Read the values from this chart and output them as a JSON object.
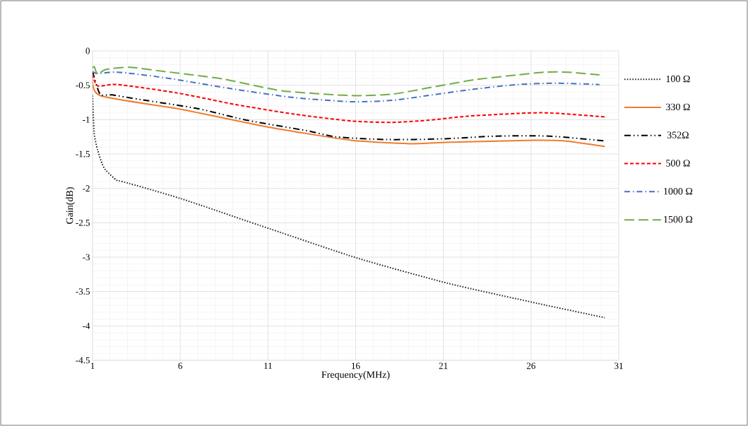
{
  "chart_data": {
    "type": "line",
    "xlabel": "Frequency(MHz)",
    "ylabel": "Gain(dB)",
    "xlim": [
      1,
      31
    ],
    "xticks": [
      1,
      6,
      11,
      16,
      21,
      26,
      31
    ],
    "ylim": [
      -4.5,
      0
    ],
    "yticks": [
      0,
      -0.5,
      -1,
      -1.5,
      -2,
      -2.5,
      -3,
      -3.5,
      -4,
      -4.5
    ],
    "grid": true,
    "legend": "right",
    "marker": "none",
    "series": [
      {
        "name": "100 Ω",
        "color": "#262626",
        "line_style": "dotted",
        "x": [
          1.0,
          1.09,
          1.29,
          1.56,
          1.77,
          2.37,
          2.84,
          6.05,
          11.13,
          16.18,
          21.26,
          26.33,
          30.2
        ],
        "values": [
          -0.65,
          -1.19,
          -1.44,
          -1.65,
          -1.74,
          -1.88,
          -1.91,
          -2.15,
          -2.59,
          -3.02,
          -3.38,
          -3.67,
          -3.88
        ]
      },
      {
        "name": "330 Ω",
        "color": "#ed7d31",
        "line_style": "solid",
        "x": [
          1.0,
          1.43,
          6.05,
          11.04,
          15.74,
          19.08,
          21.1,
          26.2,
          27.9,
          30.2
        ],
        "values": [
          -0.37,
          -0.65,
          -0.85,
          -1.11,
          -1.3,
          -1.35,
          -1.33,
          -1.3,
          -1.31,
          -1.39
        ]
      },
      {
        "name": "352Ω",
        "color": "#000000",
        "line_style": "dashdotdotted",
        "x": [
          1.0,
          1.43,
          2.1,
          3.78,
          7.0,
          9.82,
          13.2,
          14.86,
          17.8,
          20.9,
          24.0,
          27.06,
          30.2
        ],
        "values": [
          -0.3,
          -0.63,
          -0.64,
          -0.71,
          -0.84,
          -1.01,
          -1.16,
          -1.25,
          -1.29,
          -1.28,
          -1.24,
          -1.24,
          -1.31
        ]
      },
      {
        "name": "500 Ω",
        "color": "#ff0000",
        "line_style": "dashed",
        "x": [
          1.0,
          1.29,
          2.43,
          5.79,
          9.14,
          12.5,
          15.74,
          18.08,
          20.1,
          22.38,
          25.2,
          26.54,
          27.6,
          30.2
        ],
        "values": [
          -0.34,
          -0.51,
          -0.49,
          -0.61,
          -0.78,
          -0.92,
          -1.02,
          -1.04,
          -1.01,
          -0.95,
          -0.91,
          -0.9,
          -0.91,
          -0.96
        ]
      },
      {
        "name": "1000 Ω",
        "color": "#4472c4",
        "line_style": "dashdotted",
        "x": [
          1.0,
          1.3,
          2.43,
          5.1,
          9.15,
          12.5,
          15.8,
          18.08,
          20.1,
          22.65,
          25.2,
          27.5,
          29.9
        ],
        "values": [
          -0.3,
          -0.33,
          -0.31,
          -0.39,
          -0.56,
          -0.68,
          -0.74,
          -0.72,
          -0.65,
          -0.56,
          -0.49,
          -0.47,
          -0.49
        ]
      },
      {
        "name": "1500 Ω",
        "color": "#70ad47",
        "line_style": "longdashed",
        "x": [
          1.0,
          1.1,
          1.29,
          1.77,
          3.1,
          5.1,
          8.46,
          11.8,
          15.74,
          18.08,
          20.1,
          22.78,
          25.2,
          26.8,
          28.15,
          29.9
        ],
        "values": [
          -0.25,
          -0.23,
          -0.34,
          -0.27,
          -0.24,
          -0.3,
          -0.41,
          -0.58,
          -0.65,
          -0.63,
          -0.54,
          -0.42,
          -0.35,
          -0.31,
          -0.31,
          -0.35
        ]
      }
    ]
  }
}
